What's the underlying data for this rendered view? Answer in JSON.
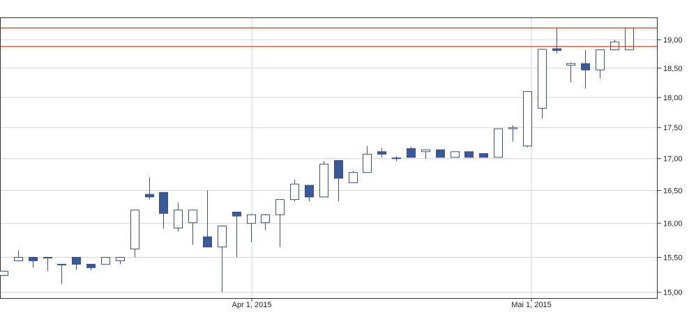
{
  "chart_data": {
    "type": "candlestick",
    "categories": [
      null,
      null,
      null,
      null,
      null,
      null,
      null,
      null,
      null,
      null,
      null,
      null,
      null,
      null,
      null,
      null,
      null,
      null,
      null,
      null,
      null,
      null,
      null,
      null,
      null,
      null,
      null,
      null,
      null,
      null,
      null,
      null,
      null,
      null,
      null,
      null,
      null,
      null,
      null,
      null,
      null,
      null,
      null,
      null
    ],
    "series": [
      {
        "up_color": "#ffffff",
        "down_color": "#3b5998",
        "edge_color": "#3b4f7d",
        "open": [
          15.24,
          15.45,
          15.5,
          15.5,
          15.4,
          15.5,
          15.4,
          15.4,
          15.45,
          15.62,
          16.44,
          16.47,
          15.93,
          16.01,
          15.8,
          15.65,
          16.17,
          16.0,
          16.01,
          16.13,
          16.36,
          16.58,
          16.4,
          16.97,
          16.62,
          16.78,
          17.11,
          17.01,
          17.16,
          17.11,
          17.14,
          17.02,
          17.11,
          17.08,
          17.02,
          17.48,
          17.2,
          17.82,
          18.84,
          18.55,
          18.58,
          18.47,
          18.82,
          18.82
        ],
        "high": [
          15.31,
          15.6,
          15.51,
          15.5,
          15.4,
          15.5,
          15.4,
          15.5,
          15.5,
          16.2,
          16.7,
          16.47,
          16.31,
          16.2,
          16.5,
          15.97,
          16.17,
          16.14,
          16.14,
          16.36,
          16.67,
          16.58,
          16.96,
          16.97,
          16.8,
          17.2,
          17.17,
          17.04,
          17.19,
          17.15,
          17.14,
          17.11,
          17.11,
          17.08,
          17.48,
          17.54,
          18.1,
          18.83,
          19.21,
          18.6,
          18.82,
          18.82,
          19.0,
          19.21
        ],
        "low": [
          15.23,
          15.44,
          15.35,
          15.3,
          15.12,
          15.32,
          15.31,
          15.4,
          15.4,
          15.5,
          16.36,
          15.92,
          15.88,
          15.68,
          15.65,
          15.0,
          15.5,
          15.72,
          15.9,
          15.65,
          16.33,
          16.33,
          16.4,
          16.33,
          16.62,
          16.78,
          17.02,
          16.96,
          17.02,
          17.0,
          17.02,
          17.02,
          17.02,
          17.02,
          17.02,
          17.27,
          17.18,
          17.65,
          18.76,
          18.26,
          18.15,
          18.32,
          18.82,
          18.82
        ],
        "close": [
          15.3,
          15.5,
          15.45,
          15.49,
          15.39,
          15.4,
          15.35,
          15.5,
          15.5,
          16.2,
          16.4,
          16.15,
          16.2,
          16.2,
          15.65,
          15.96,
          16.11,
          16.13,
          16.13,
          16.36,
          16.6,
          16.4,
          16.91,
          16.69,
          16.78,
          17.07,
          17.07,
          17.0,
          17.02,
          17.14,
          17.02,
          17.11,
          17.02,
          17.02,
          17.48,
          17.5,
          18.1,
          18.83,
          18.81,
          18.58,
          18.47,
          18.82,
          18.96,
          19.21
        ]
      }
    ],
    "hlines": [
      19.21,
      18.88
    ],
    "hline_color": "#c0392b",
    "xlim": [
      -0.24,
      44.97
    ],
    "xticks": [
      {
        "value": 17.07,
        "label": "Apr 1, 2015"
      },
      {
        "value": 36.29,
        "label": "Mai 1, 2015"
      }
    ],
    "ylim": [
      14.92,
      19.4
    ],
    "yscale": "log",
    "yticks": [
      {
        "value": 15,
        "label": "15,00"
      },
      {
        "value": 15.5,
        "label": "15,50"
      },
      {
        "value": 16,
        "label": "16,00"
      },
      {
        "value": 16.5,
        "label": "16,50"
      },
      {
        "value": 17,
        "label": "17,00"
      },
      {
        "value": 17.5,
        "label": "17,50"
      },
      {
        "value": 18,
        "label": "18,00"
      },
      {
        "value": 18.5,
        "label": "18,50"
      },
      {
        "value": 19,
        "label": "19,00"
      }
    ],
    "grid": true
  }
}
